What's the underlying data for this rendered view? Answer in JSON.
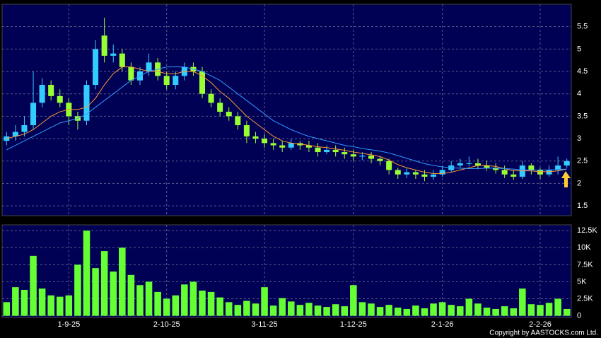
{
  "chart_data": {
    "type": "candlestick",
    "categories": [
      null,
      null,
      null,
      null,
      null,
      null,
      null,
      "1-9-25",
      null,
      null,
      null,
      null,
      null,
      null,
      null,
      null,
      null,
      null,
      "2-10-25",
      null,
      null,
      null,
      null,
      null,
      null,
      null,
      null,
      null,
      null,
      "3-11-25",
      null,
      null,
      null,
      null,
      null,
      null,
      null,
      null,
      null,
      "1-12-25",
      null,
      null,
      null,
      null,
      null,
      null,
      null,
      null,
      null,
      "2-1-26",
      null,
      null,
      null,
      null,
      null,
      null,
      null,
      null,
      null,
      null,
      "2-2-26",
      null,
      null,
      null
    ],
    "open": [
      2.95,
      3.05,
      3.15,
      3.3,
      3.8,
      4.2,
      3.95,
      3.8,
      3.5,
      3.4,
      4.2,
      5.3,
      4.85,
      4.9,
      4.6,
      4.3,
      4.5,
      4.7,
      4.4,
      4.2,
      4.4,
      4.6,
      4.5,
      4.0,
      3.8,
      3.6,
      3.5,
      3.3,
      3.05,
      3.0,
      2.9,
      2.85,
      2.8,
      2.9,
      2.85,
      2.8,
      2.7,
      2.75,
      2.7,
      2.65,
      2.6,
      2.62,
      2.55,
      2.5,
      2.3,
      2.2,
      2.25,
      2.2,
      2.15,
      2.2,
      2.3,
      2.4,
      2.45,
      2.45,
      2.4,
      2.35,
      2.3,
      2.2,
      2.15,
      2.4,
      2.3,
      2.2,
      2.3,
      2.4
    ],
    "high": [
      3.15,
      3.3,
      3.5,
      4.5,
      4.35,
      4.3,
      4.1,
      3.9,
      3.6,
      4.3,
      5.2,
      5.7,
      5.1,
      5.0,
      4.7,
      4.6,
      4.9,
      4.8,
      4.5,
      4.5,
      4.7,
      4.7,
      4.6,
      4.1,
      3.9,
      3.7,
      3.6,
      3.4,
      3.15,
      3.1,
      3.0,
      2.95,
      3.0,
      2.95,
      2.95,
      2.9,
      2.85,
      2.85,
      2.8,
      2.75,
      2.7,
      2.7,
      2.6,
      2.55,
      2.35,
      2.35,
      2.3,
      2.3,
      2.3,
      2.4,
      2.5,
      2.55,
      2.6,
      2.55,
      2.5,
      2.45,
      2.4,
      2.3,
      2.5,
      2.45,
      2.35,
      2.4,
      2.6,
      2.55
    ],
    "low": [
      2.85,
      2.95,
      3.05,
      3.2,
      3.7,
      3.85,
      3.7,
      3.3,
      3.2,
      3.3,
      4.1,
      4.7,
      4.7,
      4.5,
      4.2,
      4.2,
      4.4,
      4.3,
      4.1,
      4.1,
      4.3,
      4.4,
      3.9,
      3.7,
      3.5,
      3.4,
      3.2,
      2.9,
      2.9,
      2.8,
      2.75,
      2.7,
      2.75,
      2.75,
      2.7,
      2.6,
      2.65,
      2.6,
      2.55,
      2.5,
      2.52,
      2.45,
      2.4,
      2.2,
      2.1,
      2.12,
      2.1,
      2.05,
      2.08,
      2.15,
      2.25,
      2.35,
      2.38,
      2.32,
      2.28,
      2.22,
      2.12,
      2.08,
      2.1,
      2.2,
      2.1,
      2.15,
      2.2,
      2.35
    ],
    "close": [
      3.05,
      3.15,
      3.3,
      3.8,
      4.2,
      3.95,
      3.8,
      3.5,
      3.4,
      4.2,
      5.0,
      4.85,
      4.9,
      4.6,
      4.3,
      4.5,
      4.7,
      4.4,
      4.2,
      4.4,
      4.6,
      4.5,
      4.0,
      3.8,
      3.6,
      3.5,
      3.3,
      3.05,
      3.0,
      2.9,
      2.85,
      2.8,
      2.9,
      2.85,
      2.8,
      2.7,
      2.75,
      2.7,
      2.65,
      2.6,
      2.62,
      2.55,
      2.5,
      2.3,
      2.2,
      2.25,
      2.2,
      2.15,
      2.2,
      2.3,
      2.4,
      2.45,
      2.45,
      2.4,
      2.35,
      2.3,
      2.2,
      2.15,
      2.4,
      2.3,
      2.2,
      2.3,
      2.4,
      2.5
    ],
    "up_color": "#33ccff",
    "down_color": "#99ff33",
    "ylim": [
      1.28,
      6.0
    ],
    "yticks": [
      1.5,
      2,
      2.5,
      3,
      3.5,
      4,
      4.5,
      5,
      5.5
    ],
    "grid": true,
    "ma": [
      {
        "color": "#ff9933",
        "values": [
          3.0,
          3.05,
          3.1,
          3.2,
          3.35,
          3.5,
          3.6,
          3.65,
          3.65,
          3.7,
          3.9,
          4.2,
          4.45,
          4.6,
          4.6,
          4.55,
          4.5,
          4.5,
          4.45,
          4.45,
          4.5,
          4.5,
          4.4,
          4.25,
          4.05,
          3.9,
          3.7,
          3.5,
          3.35,
          3.2,
          3.05,
          2.95,
          2.9,
          2.88,
          2.85,
          2.82,
          2.8,
          2.77,
          2.74,
          2.7,
          2.67,
          2.64,
          2.6,
          2.52,
          2.42,
          2.35,
          2.3,
          2.25,
          2.22,
          2.22,
          2.25,
          2.3,
          2.35,
          2.4,
          2.4,
          2.38,
          2.33,
          2.28,
          2.28,
          2.28,
          2.26,
          2.26,
          2.28,
          2.32
        ]
      },
      {
        "color": "#3399ff",
        "values": [
          2.75,
          2.85,
          2.95,
          3.05,
          3.15,
          3.25,
          3.35,
          3.4,
          3.45,
          3.55,
          3.7,
          3.85,
          4.0,
          4.15,
          4.3,
          4.4,
          4.5,
          4.55,
          4.6,
          4.6,
          4.6,
          4.55,
          4.5,
          4.4,
          4.3,
          4.15,
          4.0,
          3.85,
          3.7,
          3.55,
          3.4,
          3.3,
          3.2,
          3.12,
          3.05,
          3.0,
          2.95,
          2.9,
          2.85,
          2.82,
          2.78,
          2.75,
          2.72,
          2.68,
          2.62,
          2.56,
          2.5,
          2.44,
          2.4,
          2.37,
          2.35,
          2.34,
          2.33,
          2.33,
          2.34,
          2.34,
          2.33,
          2.32,
          2.3,
          2.3,
          2.3,
          2.3,
          2.31,
          2.32
        ]
      }
    ],
    "volume": {
      "type": "bar",
      "color": "#66ff33",
      "values": [
        2000,
        4200,
        3800,
        8800,
        4000,
        3000,
        2800,
        3000,
        7500,
        12500,
        7000,
        9500,
        6500,
        10000,
        6000,
        4500,
        5000,
        3500,
        2500,
        3000,
        4600,
        5000,
        3700,
        3500,
        2700,
        2000,
        1600,
        2200,
        1800,
        4200,
        1500,
        2600,
        2100,
        1600,
        1900,
        1500,
        1300,
        1700,
        1400,
        4500,
        2000,
        1800,
        1300,
        1600,
        1200,
        1000,
        1500,
        1100,
        1800,
        2000,
        1600,
        1400,
        2500,
        1800,
        1200,
        1000,
        1400,
        1100,
        4000,
        1700,
        1600,
        1900,
        2500,
        1000
      ],
      "ylim": [
        -250,
        13350
      ],
      "yticks": [
        0,
        {
          "value": 2500,
          "label": "2.5K"
        },
        {
          "value": 5000,
          "label": "5K"
        },
        {
          "value": 7500,
          "label": "7.5K"
        },
        {
          "value": 10000,
          "label": "10K"
        },
        {
          "value": 12500,
          "label": "12.5K"
        }
      ]
    }
  },
  "footer": "Copyright by AASTOCKS.com Ltd."
}
